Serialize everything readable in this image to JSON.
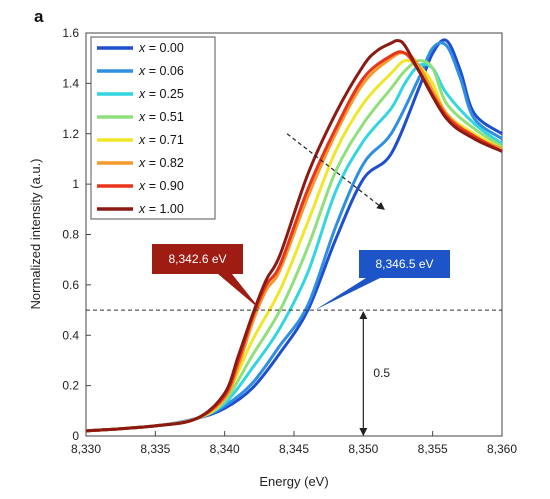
{
  "chart_data": {
    "type": "line",
    "panel_label": "a",
    "xlabel": "Energy (eV)",
    "ylabel": "Normalized intensity (a.u.)",
    "xlim": [
      8330,
      8360
    ],
    "ylim": [
      0,
      1.6
    ],
    "x_ticks": [
      "8,330",
      "8,335",
      "8,340",
      "8,345",
      "8,350",
      "8,355",
      "8,360"
    ],
    "x_tick_values": [
      8330,
      8335,
      8340,
      8345,
      8350,
      8355,
      8360
    ],
    "y_ticks": [
      "0",
      "0.2",
      "0.4",
      "0.6",
      "0.8",
      "1",
      "1.2",
      "1.4",
      "1.6"
    ],
    "y_tick_values": [
      0,
      0.2,
      0.4,
      0.6,
      0.8,
      1.0,
      1.2,
      1.4,
      1.6
    ],
    "grid": false,
    "legend_position": "top-left",
    "reference_line_y": 0.5,
    "series": [
      {
        "name": "x = 0.00",
        "x_prefix": "x",
        "value_text": " = 0.00",
        "color": "#1f4fcf",
        "x": [
          8330,
          8335,
          8338,
          8340,
          8342,
          8344,
          8346,
          8348,
          8350,
          8352,
          8354,
          8355,
          8356,
          8357,
          8358,
          8360
        ],
        "y": [
          0.02,
          0.04,
          0.07,
          0.11,
          0.19,
          0.33,
          0.5,
          0.78,
          1.02,
          1.12,
          1.38,
          1.52,
          1.57,
          1.45,
          1.28,
          1.2
        ]
      },
      {
        "name": "x = 0.06",
        "x_prefix": "x",
        "value_text": " = 0.06",
        "color": "#2f8fe0",
        "x": [
          8330,
          8335,
          8338,
          8340,
          8342,
          8344,
          8346,
          8348,
          8350,
          8352,
          8354,
          8355,
          8356,
          8357,
          8358,
          8360
        ],
        "y": [
          0.02,
          0.04,
          0.07,
          0.12,
          0.21,
          0.36,
          0.52,
          0.83,
          1.08,
          1.2,
          1.42,
          1.54,
          1.55,
          1.42,
          1.26,
          1.18
        ]
      },
      {
        "name": "x = 0.25",
        "x_prefix": "x",
        "value_text": " = 0.25",
        "color": "#33d6e0",
        "x": [
          8330,
          8335,
          8338,
          8340,
          8342,
          8344,
          8346,
          8348,
          8350,
          8352,
          8353,
          8354,
          8355,
          8356,
          8358,
          8360
        ],
        "y": [
          0.02,
          0.04,
          0.07,
          0.13,
          0.27,
          0.43,
          0.65,
          0.97,
          1.17,
          1.3,
          1.4,
          1.47,
          1.46,
          1.36,
          1.24,
          1.16
        ]
      },
      {
        "name": "x = 0.51",
        "x_prefix": "x",
        "value_text": " = 0.51",
        "color": "#8fe07a",
        "x": [
          8330,
          8335,
          8338,
          8340,
          8342,
          8344,
          8346,
          8348,
          8350,
          8352,
          8353,
          8354,
          8355,
          8356,
          8358,
          8360
        ],
        "y": [
          0.02,
          0.04,
          0.07,
          0.14,
          0.32,
          0.5,
          0.75,
          1.05,
          1.24,
          1.38,
          1.45,
          1.49,
          1.46,
          1.32,
          1.22,
          1.15
        ]
      },
      {
        "name": "x = 0.71",
        "x_prefix": "x",
        "value_text": " = 0.71",
        "color": "#f0e62a",
        "x": [
          8330,
          8335,
          8338,
          8340,
          8342,
          8344,
          8346,
          8348,
          8350,
          8352,
          8353,
          8354,
          8355,
          8356,
          8358,
          8360
        ],
        "y": [
          0.02,
          0.04,
          0.07,
          0.15,
          0.38,
          0.58,
          0.85,
          1.13,
          1.32,
          1.44,
          1.49,
          1.47,
          1.4,
          1.28,
          1.2,
          1.14
        ]
      },
      {
        "name": "x = 0.82",
        "x_prefix": "x",
        "value_text": " = 0.82",
        "color": "#f39a2a",
        "x": [
          8330,
          8335,
          8338,
          8340,
          8341,
          8342,
          8343,
          8344,
          8346,
          8348,
          8350,
          8352,
          8353,
          8354,
          8356,
          8358,
          8360
        ],
        "y": [
          0.02,
          0.04,
          0.07,
          0.15,
          0.28,
          0.45,
          0.58,
          0.66,
          0.95,
          1.2,
          1.4,
          1.5,
          1.52,
          1.47,
          1.28,
          1.19,
          1.14
        ]
      },
      {
        "name": "x = 0.90",
        "x_prefix": "x",
        "value_text": " = 0.90",
        "color": "#e8341c",
        "x": [
          8330,
          8335,
          8338,
          8340,
          8341,
          8342,
          8343,
          8344,
          8346,
          8348,
          8350,
          8352,
          8353,
          8354,
          8356,
          8358,
          8360
        ],
        "y": [
          0.02,
          0.04,
          0.07,
          0.16,
          0.3,
          0.47,
          0.6,
          0.68,
          0.98,
          1.22,
          1.42,
          1.51,
          1.52,
          1.45,
          1.27,
          1.19,
          1.13
        ]
      },
      {
        "name": "x = 1.00",
        "x_prefix": "x",
        "value_text": " = 1.00",
        "color": "#8b1a12",
        "x": [
          8330,
          8335,
          8338,
          8340,
          8341,
          8342,
          8343,
          8344,
          8346,
          8348,
          8350,
          8351,
          8352,
          8352.5,
          8353,
          8354,
          8356,
          8358,
          8360
        ],
        "y": [
          0.02,
          0.04,
          0.07,
          0.17,
          0.32,
          0.48,
          0.62,
          0.72,
          1.04,
          1.28,
          1.47,
          1.53,
          1.56,
          1.57,
          1.55,
          1.45,
          1.26,
          1.18,
          1.13
        ]
      }
    ],
    "annotations": {
      "callout_left": {
        "text": "8,342.6 eV",
        "x": 8342.6,
        "y": 0.5,
        "color": "#9e1c12"
      },
      "callout_right": {
        "text": "8,346.5 eV",
        "x": 8346.5,
        "y": 0.5,
        "color": "#1d55c8"
      },
      "dashed_arrow": {
        "from": [
          8344.5,
          1.2
        ],
        "to": [
          8351.5,
          0.9
        ]
      },
      "vertical_arrow": {
        "x": 8350,
        "y_from": 0.0,
        "y_to": 0.5,
        "label": "0.5"
      }
    }
  }
}
